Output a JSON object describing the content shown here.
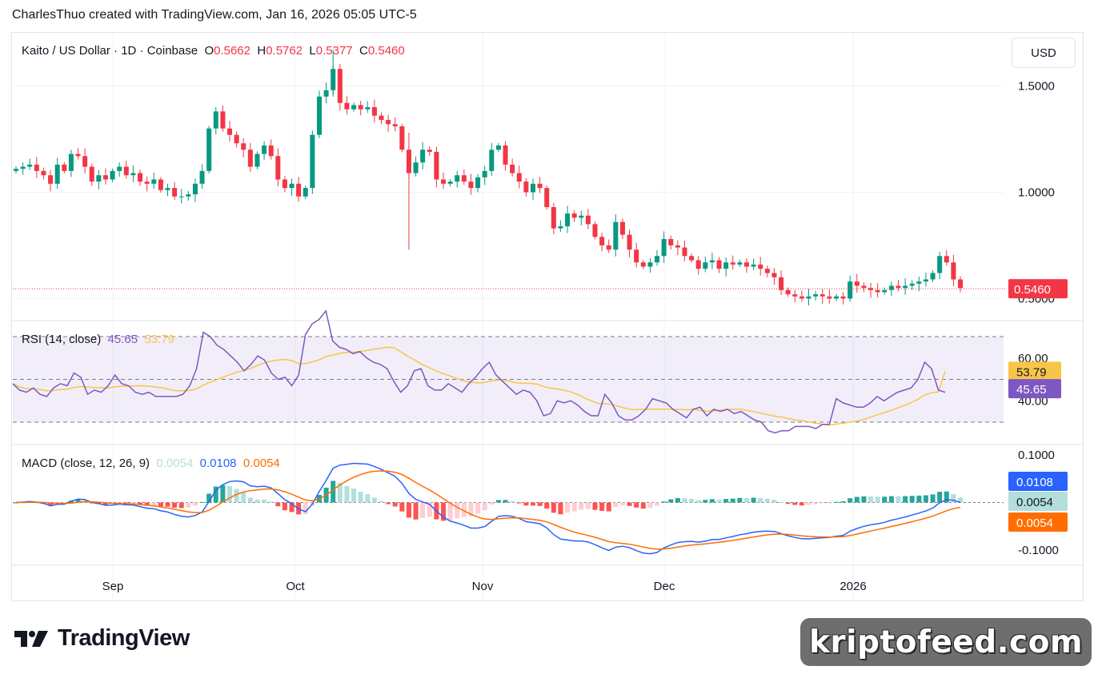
{
  "header": {
    "credit": "CharlesThuo created with TradingView.com, Jan 16, 2026 05:05 UTC-5"
  },
  "currency_button": "USD",
  "legend": {
    "symbol": "Kaito / US Dollar · 1D · Coinbase",
    "o_label": "O",
    "o_value": "0.5662",
    "h_label": "H",
    "h_value": "0.5762",
    "l_label": "L",
    "l_value": "0.5377",
    "c_label": "C",
    "c_value": "0.5460"
  },
  "rsi_legend": {
    "title": "RSI (14, close)",
    "rsi_value": "45.65",
    "ma_value": "53.79"
  },
  "macd_legend": {
    "title": "MACD (close, 12, 26, 9)",
    "hist_value": "0.0054",
    "macd_value": "0.0108",
    "signal_value": "0.0054"
  },
  "logo": {
    "text": "TradingView"
  },
  "watermark": {
    "text": "kriptofeed.com"
  },
  "colors": {
    "up": "#089981",
    "down": "#f23645",
    "rsi": "#7e57c2",
    "rsi_ma": "#f7c548",
    "macd": "#2962ff",
    "signal": "#ff6d00",
    "hist_up": "#26a69a",
    "hist_up_light": "#b2dfdb",
    "hist_down": "#ff5252",
    "hist_down_light": "#ffcdd2"
  },
  "chart_data": [
    {
      "type": "candlestick",
      "title": "Kaito / US Dollar · 1D · Coinbase",
      "ylim": [
        0.4,
        1.75
      ],
      "y_ticks": [
        "1.5000",
        "1.0000",
        "0.5000"
      ],
      "x_ticks": [
        "Sep",
        "Oct",
        "Nov",
        "Dec",
        "2026"
      ],
      "last_price": "0.5460",
      "close": [
        1.11,
        1.12,
        1.13,
        1.1,
        1.08,
        1.04,
        1.13,
        1.1,
        1.18,
        1.17,
        1.12,
        1.05,
        1.08,
        1.06,
        1.1,
        1.12,
        1.08,
        1.09,
        1.05,
        1.04,
        1.06,
        1.01,
        1.02,
        0.98,
        0.98,
        0.99,
        1.04,
        1.1,
        1.3,
        1.38,
        1.3,
        1.27,
        1.23,
        1.2,
        1.12,
        1.18,
        1.22,
        1.17,
        1.06,
        1.02,
        1.04,
        0.98,
        1.02,
        1.27,
        1.45,
        1.48,
        1.58,
        1.42,
        1.39,
        1.41,
        1.39,
        1.4,
        1.36,
        1.34,
        1.32,
        1.31,
        1.2,
        1.09,
        1.14,
        1.2,
        1.19,
        1.06,
        1.04,
        1.05,
        1.08,
        1.05,
        1.02,
        1.07,
        1.1,
        1.2,
        1.22,
        1.13,
        1.09,
        1.05,
        1.0,
        1.04,
        1.02,
        0.93,
        0.83,
        0.84,
        0.9,
        0.88,
        0.89,
        0.85,
        0.79,
        0.75,
        0.73,
        0.86,
        0.8,
        0.73,
        0.67,
        0.65,
        0.67,
        0.7,
        0.78,
        0.75,
        0.74,
        0.7,
        0.68,
        0.64,
        0.67,
        0.68,
        0.64,
        0.67,
        0.66,
        0.67,
        0.65,
        0.66,
        0.64,
        0.62,
        0.6,
        0.54,
        0.52,
        0.51,
        0.5,
        0.51,
        0.52,
        0.51,
        0.5,
        0.51,
        0.5,
        0.58,
        0.56,
        0.55,
        0.54,
        0.53,
        0.54,
        0.56,
        0.55,
        0.56,
        0.57,
        0.58,
        0.59,
        0.62,
        0.7,
        0.67,
        0.59,
        0.55
      ]
    },
    {
      "type": "line",
      "title": "RSI (14, close)",
      "ylim": [
        0,
        100
      ],
      "y_ticks": [
        "60.00",
        "40.00"
      ],
      "bands": [
        70,
        50,
        30
      ],
      "rsi_last": 45.65,
      "ma_last": 53.79,
      "rsi": [
        48,
        45,
        44,
        46,
        43,
        42,
        46,
        48,
        47,
        53,
        51,
        43,
        45,
        44,
        47,
        52,
        48,
        47,
        44,
        43,
        44,
        42,
        42,
        42,
        42,
        43,
        47,
        55,
        72,
        70,
        66,
        64,
        61,
        58,
        54,
        57,
        61,
        59,
        53,
        50,
        51,
        47,
        52,
        71,
        76,
        78,
        82,
        68,
        65,
        64,
        62,
        63,
        60,
        58,
        57,
        55,
        49,
        44,
        47,
        54,
        55,
        47,
        45,
        45,
        48,
        46,
        44,
        48,
        51,
        55,
        58,
        52,
        49,
        46,
        43,
        45,
        44,
        40,
        33,
        34,
        40,
        39,
        40,
        38,
        35,
        33,
        33,
        43,
        39,
        33,
        31,
        31,
        33,
        36,
        41,
        40,
        39,
        36,
        34,
        32,
        36,
        37,
        33,
        36,
        35,
        36,
        34,
        35,
        33,
        31,
        30,
        26,
        25,
        26,
        26,
        28,
        28,
        28,
        27,
        29,
        29,
        41,
        39,
        38,
        37,
        37,
        39,
        42,
        40,
        42,
        44,
        45,
        46,
        50,
        58,
        55,
        45,
        44
      ]
    },
    {
      "type": "bar+line",
      "title": "MACD (close, 12, 26, 9)",
      "ylim": [
        -0.13,
        0.12
      ],
      "y_ticks": [
        "0.1000",
        "-0.1000"
      ],
      "macd_last": 0.0108,
      "signal_last": 0.0054,
      "hist_last": 0.0054
    }
  ]
}
